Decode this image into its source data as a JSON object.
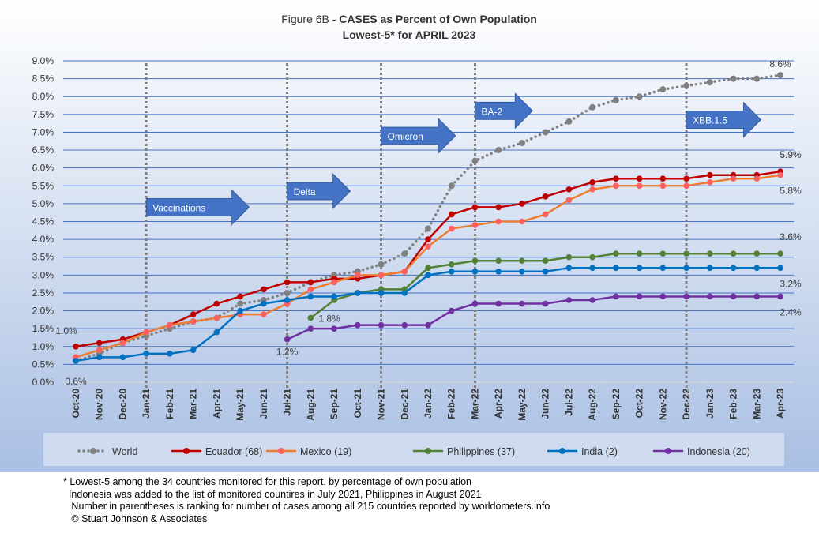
{
  "chart_data": {
    "type": "line",
    "title": "Figure 6B - ",
    "title_bold": "CASES as Percent of Own Population",
    "subtitle": "Lowest-5* for APRIL 2023",
    "xlabel": "",
    "ylabel": "",
    "ylim": [
      0,
      9
    ],
    "yticks": [
      "0.0%",
      "0.5%",
      "1.0%",
      "1.5%",
      "2.0%",
      "2.5%",
      "3.0%",
      "3.5%",
      "4.0%",
      "4.5%",
      "5.0%",
      "5.5%",
      "6.0%",
      "6.5%",
      "7.0%",
      "7.5%",
      "8.0%",
      "8.5%",
      "9.0%"
    ],
    "grid": true,
    "legend_position": "bottom",
    "categories": [
      "Oct-20",
      "Nov-20",
      "Dec-20",
      "Jan-21",
      "Feb-21",
      "Mar-21",
      "Apr-21",
      "May-21",
      "Jun-21",
      "Jul-21",
      "Aug-21",
      "Sep-21",
      "Oct-21",
      "Nov-21",
      "Dec-21",
      "Jan-22",
      "Feb-22",
      "Mar-22",
      "Apr-22",
      "May-22",
      "Jun-22",
      "Jul-22",
      "Aug-22",
      "Sep-22",
      "Oct-22",
      "Nov-22",
      "Dec-22",
      "Jan-23",
      "Feb-23",
      "Mar-23",
      "Apr-23"
    ],
    "series": [
      {
        "name": "World",
        "color": "#808080",
        "dotted": true,
        "values": [
          0.6,
          0.8,
          1.1,
          1.3,
          1.5,
          1.7,
          1.8,
          2.2,
          2.3,
          2.5,
          2.8,
          3.0,
          3.1,
          3.3,
          3.6,
          4.3,
          5.5,
          6.2,
          6.5,
          6.7,
          7.0,
          7.3,
          7.7,
          7.9,
          8.0,
          8.2,
          8.3,
          8.4,
          8.5,
          8.5,
          8.6
        ]
      },
      {
        "name": "Ecuador (68)",
        "color": "#c00000",
        "values": [
          1.0,
          1.1,
          1.2,
          1.4,
          1.6,
          1.9,
          2.2,
          2.4,
          2.6,
          2.8,
          2.8,
          2.9,
          2.9,
          3.0,
          3.1,
          4.0,
          4.7,
          4.9,
          4.9,
          5.0,
          5.2,
          5.4,
          5.6,
          5.7,
          5.7,
          5.7,
          5.7,
          5.8,
          5.8,
          5.8,
          5.9
        ]
      },
      {
        "name": "Mexico (19)",
        "color": "#ed7d31",
        "marker": "#ff5f5f",
        "values": [
          0.7,
          0.9,
          1.1,
          1.4,
          1.6,
          1.7,
          1.8,
          1.9,
          1.9,
          2.2,
          2.6,
          2.8,
          3.0,
          3.0,
          3.1,
          3.8,
          4.3,
          4.4,
          4.5,
          4.5,
          4.7,
          5.1,
          5.4,
          5.5,
          5.5,
          5.5,
          5.5,
          5.6,
          5.7,
          5.7,
          5.8
        ]
      },
      {
        "name": "Philippines (37)",
        "color": "#548235",
        "values": [
          null,
          null,
          null,
          null,
          null,
          null,
          null,
          null,
          null,
          null,
          1.8,
          2.3,
          2.5,
          2.6,
          2.6,
          3.2,
          3.3,
          3.4,
          3.4,
          3.4,
          3.4,
          3.5,
          3.5,
          3.6,
          3.6,
          3.6,
          3.6,
          3.6,
          3.6,
          3.6,
          3.6
        ]
      },
      {
        "name": "India (2)",
        "color": "#0070c0",
        "values": [
          0.6,
          0.7,
          0.7,
          0.8,
          0.8,
          0.9,
          1.4,
          2.0,
          2.2,
          2.3,
          2.4,
          2.4,
          2.5,
          2.5,
          2.5,
          3.0,
          3.1,
          3.1,
          3.1,
          3.1,
          3.1,
          3.2,
          3.2,
          3.2,
          3.2,
          3.2,
          3.2,
          3.2,
          3.2,
          3.2,
          3.2
        ]
      },
      {
        "name": "Indonesia (20)",
        "color": "#7030a0",
        "values": [
          null,
          null,
          null,
          null,
          null,
          null,
          null,
          null,
          null,
          1.2,
          1.5,
          1.5,
          1.6,
          1.6,
          1.6,
          1.6,
          2.0,
          2.2,
          2.2,
          2.2,
          2.2,
          2.3,
          2.3,
          2.4,
          2.4,
          2.4,
          2.4,
          2.4,
          2.4,
          2.4,
          2.4
        ]
      }
    ],
    "data_labels": [
      {
        "text": "8.6%",
        "series": 0,
        "index": 30,
        "pos": "above"
      },
      {
        "text": "5.9%",
        "series": 1,
        "index": 30,
        "pos": "above2"
      },
      {
        "text": "5.8%",
        "series": 2,
        "index": 30,
        "pos": "below2"
      },
      {
        "text": "3.6%",
        "series": 3,
        "index": 30,
        "pos": "above2"
      },
      {
        "text": "3.2%",
        "series": 4,
        "index": 30,
        "pos": "below2"
      },
      {
        "text": "2.4%",
        "series": 5,
        "index": 30,
        "pos": "below2"
      },
      {
        "text": "1.0%",
        "series": 1,
        "index": 0,
        "pos": "above"
      },
      {
        "text": "0.6%",
        "series": 4,
        "index": 0,
        "pos": "below"
      },
      {
        "text": "1.2%",
        "series": 5,
        "index": 9,
        "pos": "below"
      },
      {
        "text": "1.8%",
        "series": 3,
        "index": 10,
        "pos": "right"
      }
    ],
    "event_lines": [
      "Jan-21",
      "Jul-21",
      "Nov-21",
      "Mar-22",
      "Dec-22"
    ],
    "annotations": [
      {
        "text": "Vaccinations",
        "at": "Jan-21",
        "y": 4.9
      },
      {
        "text": "Delta",
        "at": "Jul-21",
        "y": 5.35
      },
      {
        "text": "Omicron",
        "at": "Nov-21",
        "y": 6.9
      },
      {
        "text": "BA-2",
        "at": "Mar-22",
        "y": 7.6
      },
      {
        "text": "XBB.1.5",
        "at": "Dec-22",
        "y": 7.35
      }
    ]
  },
  "footnotes": [
    "* Lowest-5 among the 34 countries monitored for this report, by percentage of own population",
    "  Indonesia was added to the list of monitored countires in July 2021, Philippines in August 2021",
    "   Number in parentheses is ranking for number of cases among all 215 countries reported by worldometers.info",
    "   © Stuart Johnson & Associates"
  ]
}
